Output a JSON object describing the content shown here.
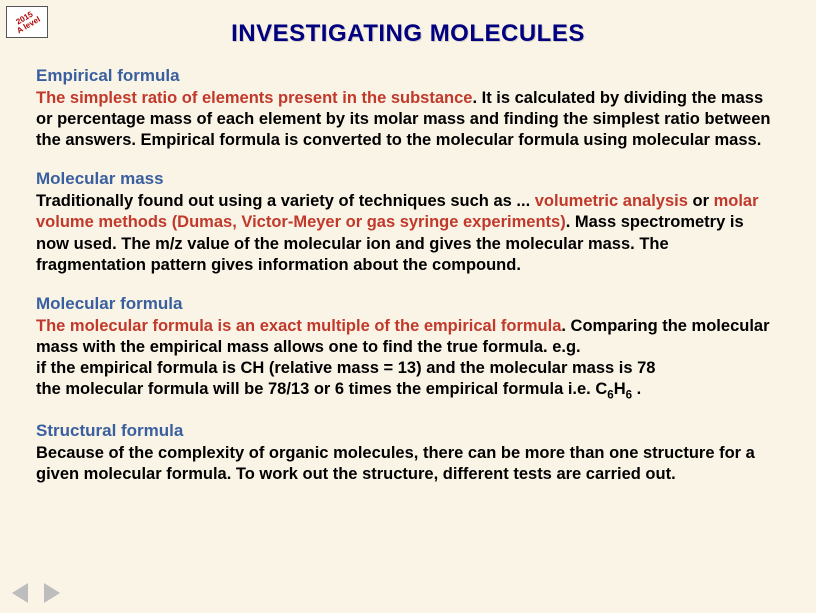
{
  "badge": "2015\nA level",
  "title": "INVESTIGATING  MOLECULES",
  "sections": {
    "empirical": {
      "heading": "Empirical formula",
      "red": "The simplest ratio of elements present in the substance",
      "rest": ".   It is calculated by dividing the mass or percentage mass of each element by its molar mass and finding the simplest ratio between the answers.   Empirical formula is converted to the molecular formula using molecular mass."
    },
    "molmass": {
      "heading": "Molecular mass",
      "lead": "Traditionally found out using a variety of techniques such as ... ",
      "red": "volumetric analysis",
      "mid": " or ",
      "red2": "molar volume methods (Dumas, Victor-Meyer or gas syringe experiments)",
      "rest": ".   Mass spectrometry is now used.   The m/z value of the molecular ion and gives the molecular mass.   The fragmentation pattern gives information about the compound."
    },
    "molform": {
      "heading": "Molecular formula",
      "red": "The molecular formula is an exact multiple of the empirical formula",
      "rest1": ".   Comparing the molecular mass with the empirical mass allows one to find the true formula. e.g.",
      "line2": "if the empirical formula  is CH (relative mass = 13) and the molecular mass is 78",
      "line3a": "the molecular formula will be 78/13 or 6 times the empirical formula  i.e. C",
      "sub1": "6",
      "line3b": "H",
      "sub2": "6",
      "line3c": " ."
    },
    "struct": {
      "heading": "Structural formula",
      "text": "Because of the complexity of organic molecules, there can be more than one structure for a given molecular formula.  To work out the structure, different tests are carried out."
    }
  }
}
